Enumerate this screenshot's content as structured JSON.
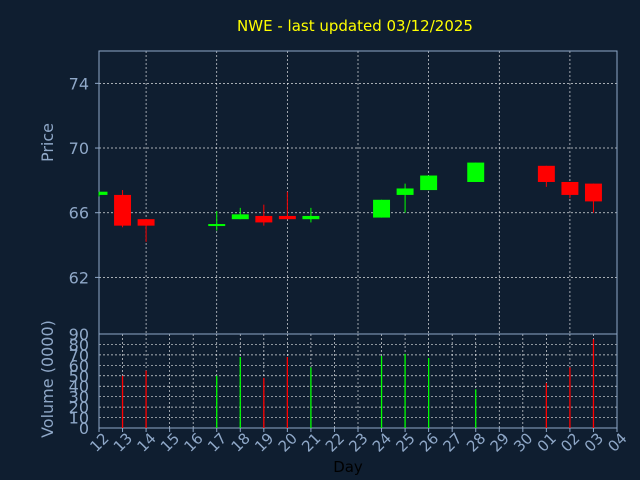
{
  "title": "NWE - last updated 03/12/2025",
  "colors": {
    "background": "#0f1e30",
    "axis": "#8fa8c8",
    "grid": "#ffffff",
    "title": "#ffff00",
    "up": "#00ff00",
    "down": "#ff0000",
    "day_label": "#000000"
  },
  "chart_data": [
    {
      "type": "candlestick",
      "ylabel": "Price",
      "ylim": [
        58.5,
        76
      ],
      "yticks": [
        62,
        66,
        70,
        74
      ],
      "grid": true,
      "days": [
        {
          "day": "12",
          "open": 67.1,
          "high": 67.3,
          "low": 67.0,
          "close": 67.3
        },
        {
          "day": "13",
          "open": 67.1,
          "high": 67.4,
          "low": 65.1,
          "close": 65.2
        },
        {
          "day": "14",
          "open": 65.6,
          "high": 65.6,
          "low": 64.2,
          "close": 65.2
        },
        {
          "day": "15"
        },
        {
          "day": "16"
        },
        {
          "day": "17",
          "open": 65.2,
          "high": 66.1,
          "low": 64.9,
          "close": 65.3
        },
        {
          "day": "18",
          "open": 65.6,
          "high": 66.3,
          "low": 65.6,
          "close": 65.9
        },
        {
          "day": "19",
          "open": 65.8,
          "high": 66.5,
          "low": 65.2,
          "close": 65.4
        },
        {
          "day": "20",
          "open": 65.8,
          "high": 67.3,
          "low": 65.6,
          "close": 65.6
        },
        {
          "day": "21",
          "open": 65.6,
          "high": 66.3,
          "low": 65.4,
          "close": 65.8
        },
        {
          "day": "22"
        },
        {
          "day": "23"
        },
        {
          "day": "24",
          "open": 65.7,
          "high": 66.8,
          "low": 65.7,
          "close": 66.8
        },
        {
          "day": "25",
          "open": 67.1,
          "high": 67.8,
          "low": 66.0,
          "close": 67.5
        },
        {
          "day": "26",
          "open": 67.4,
          "high": 68.3,
          "low": 67.4,
          "close": 68.3
        },
        {
          "day": "27"
        },
        {
          "day": "28",
          "open": 67.9,
          "high": 69.1,
          "low": 67.9,
          "close": 69.1
        },
        {
          "day": "29"
        },
        {
          "day": "30"
        },
        {
          "day": "01",
          "open": 68.9,
          "high": 68.9,
          "low": 67.6,
          "close": 67.9
        },
        {
          "day": "02",
          "open": 67.9,
          "high": 67.9,
          "low": 66.9,
          "close": 67.1
        },
        {
          "day": "03",
          "open": 67.8,
          "high": 67.8,
          "low": 66.0,
          "close": 66.7
        },
        {
          "day": "04"
        }
      ]
    },
    {
      "type": "bar",
      "ylabel": "Volume (0000)",
      "xlabel": "Day",
      "ylim": [
        0,
        90
      ],
      "yticks": [
        0,
        10,
        20,
        30,
        40,
        50,
        60,
        70,
        80,
        90
      ],
      "grid": true,
      "categories": [
        "12",
        "13",
        "14",
        "15",
        "16",
        "17",
        "18",
        "19",
        "20",
        "21",
        "22",
        "23",
        "24",
        "25",
        "26",
        "27",
        "28",
        "29",
        "30",
        "01",
        "02",
        "03",
        "04"
      ],
      "values": [
        null,
        50,
        55,
        null,
        null,
        50,
        68,
        48,
        68,
        58,
        null,
        null,
        69,
        71,
        67,
        null,
        37,
        null,
        null,
        43,
        58,
        85,
        null
      ],
      "directions": [
        "",
        "down",
        "down",
        "",
        "",
        "up",
        "up",
        "down",
        "down",
        "up",
        "",
        "",
        "up",
        "up",
        "up",
        "",
        "up",
        "",
        "",
        "down",
        "down",
        "down",
        ""
      ]
    }
  ]
}
